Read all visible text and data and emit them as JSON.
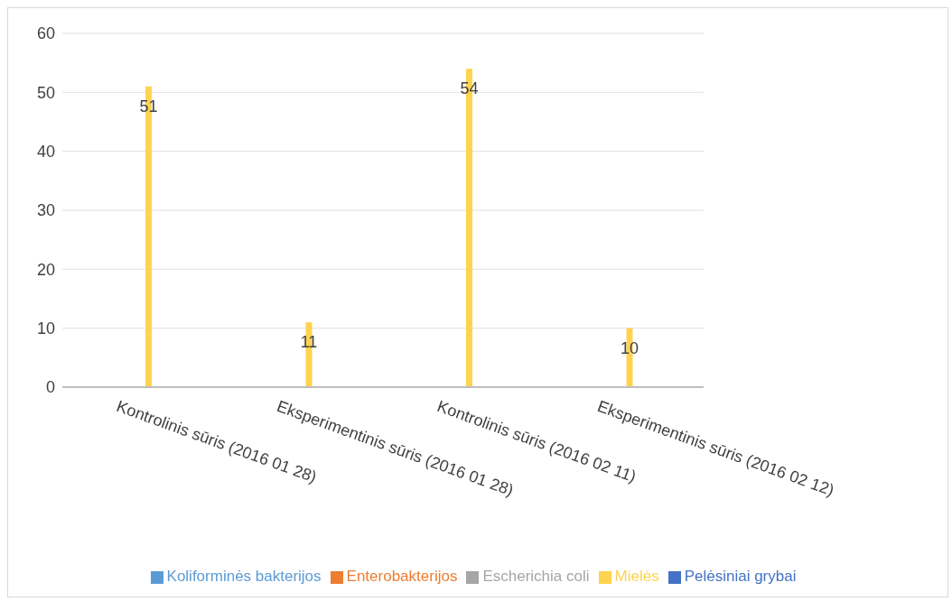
{
  "chart_data": {
    "type": "bar",
    "categories": [
      "Kontrolinis sūris (2016 01 28)",
      "Eksperimentinis sūris (2016 01 28)",
      "Kontrolinis sūris (2016 02 11)",
      "Eksperimentinis sūris (2016 02 12)"
    ],
    "series": [
      {
        "name": "Koliforminės bakterijos",
        "color": "#5b9bd5",
        "values": [
          null,
          null,
          null,
          null
        ]
      },
      {
        "name": "Enterobakterijos",
        "color": "#ed7d31",
        "values": [
          null,
          null,
          null,
          null
        ]
      },
      {
        "name": "Escherichia coli",
        "color": "#a5a5a5",
        "values": [
          null,
          null,
          null,
          null
        ]
      },
      {
        "name": "Mielės",
        "color": "#ffd34f",
        "values": [
          51,
          11,
          54,
          10
        ],
        "value_labels": [
          "51",
          "11",
          "54",
          "10"
        ]
      },
      {
        "name": "Pelėsiniai grybai",
        "color": "#4472c4",
        "values": [
          null,
          null,
          null,
          null
        ]
      }
    ],
    "ylim": [
      0,
      60
    ],
    "yticks": [
      0,
      10,
      20,
      30,
      40,
      50,
      60
    ],
    "grid": "y",
    "legend": "bottom"
  }
}
